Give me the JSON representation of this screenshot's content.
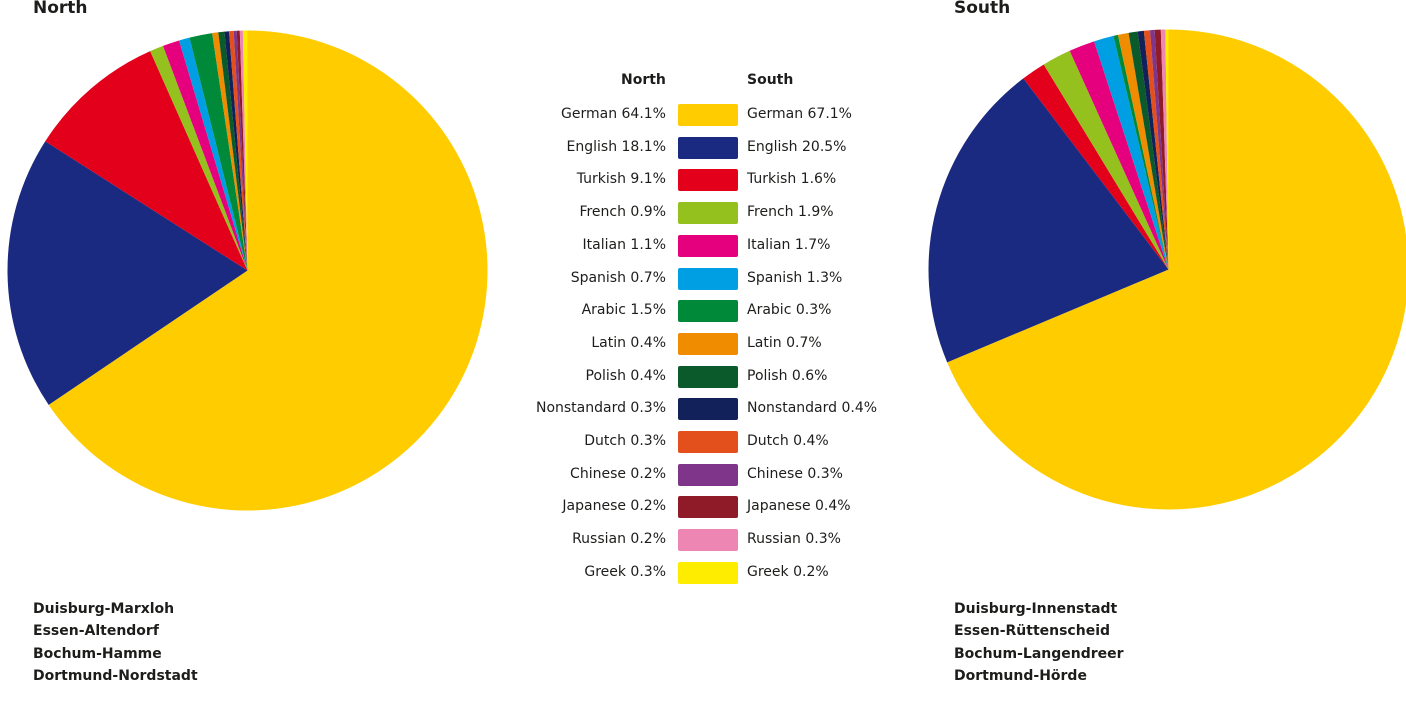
{
  "chart_data": [
    {
      "type": "pie",
      "title": "North",
      "categories": [
        "German",
        "English",
        "Turkish",
        "French",
        "Italian",
        "Spanish",
        "Arabic",
        "Latin",
        "Polish",
        "Nonstandard",
        "Dutch",
        "Chinese",
        "Japanese",
        "Russian",
        "Greek"
      ],
      "values": [
        64.1,
        18.1,
        9.1,
        0.9,
        1.1,
        0.7,
        1.5,
        0.4,
        0.4,
        0.3,
        0.3,
        0.2,
        0.2,
        0.2,
        0.3
      ],
      "districts": [
        "Duisburg-Marxloh",
        "Essen-Altendorf",
        "Bochum-Hamme",
        "Dortmund-Nordstadt"
      ],
      "unit": "%"
    },
    {
      "type": "pie",
      "title": "South",
      "categories": [
        "German",
        "English",
        "Turkish",
        "French",
        "Italian",
        "Spanish",
        "Arabic",
        "Latin",
        "Polish",
        "Nonstandard",
        "Dutch",
        "Chinese",
        "Japanese",
        "Russian",
        "Greek"
      ],
      "values": [
        67.1,
        20.5,
        1.6,
        1.9,
        1.7,
        1.3,
        0.3,
        0.7,
        0.6,
        0.4,
        0.4,
        0.3,
        0.4,
        0.3,
        0.2
      ],
      "districts": [
        "Duisburg-Innenstadt",
        "Essen-Rüttenscheid",
        "Bochum-Langendreer",
        "Dortmund-Hörde"
      ],
      "unit": "%"
    }
  ],
  "colors": [
    "#ffcc00",
    "#1a2a80",
    "#e2001a",
    "#95c11f",
    "#e5007e",
    "#009fe3",
    "#008939",
    "#ef8c00",
    "#0b5a2b",
    "#13215a",
    "#e4501c",
    "#7f3589",
    "#8e1b27",
    "#ee86b4",
    "#ffed00"
  ],
  "north": {
    "title": "North",
    "districts": [
      "Duisburg-Marxloh",
      "Essen-Altendorf",
      "Bochum-Hamme",
      "Dortmund-Nordstadt"
    ]
  },
  "south": {
    "title": "South",
    "districts": [
      "Duisburg-Innenstadt",
      "Essen-Rüttenscheid",
      "Bochum-Langendreer",
      "Dortmund-Hörde"
    ]
  },
  "legend": {
    "north_header": "North",
    "south_header": "South",
    "rows": [
      {
        "north": "German 64.1%",
        "south": "German 67.1%"
      },
      {
        "north": "English 18.1%",
        "south": "English 20.5%"
      },
      {
        "north": "Turkish 9.1%",
        "south": "Turkish 1.6%"
      },
      {
        "north": "French 0.9%",
        "south": "French 1.9%"
      },
      {
        "north": "Italian 1.1%",
        "south": "Italian 1.7%"
      },
      {
        "north": "Spanish 0.7%",
        "south": "Spanish 1.3%"
      },
      {
        "north": "Arabic 1.5%",
        "south": "Arabic 0.3%"
      },
      {
        "north": "Latin 0.4%",
        "south": "Latin 0.7%"
      },
      {
        "north": "Polish 0.4%",
        "south": "Polish 0.6%"
      },
      {
        "north": "Nonstandard 0.3%",
        "south": "Nonstandard 0.4%"
      },
      {
        "north": "Dutch 0.3%",
        "south": "Dutch 0.4%"
      },
      {
        "north": "Chinese 0.2%",
        "south": "Chinese 0.3%"
      },
      {
        "north": "Japanese 0.2%",
        "south": "Japanese 0.4%"
      },
      {
        "north": "Russian 0.2%",
        "south": "Russian 0.3%"
      },
      {
        "north": "Greek 0.3%",
        "south": "Greek 0.2%"
      }
    ]
  }
}
